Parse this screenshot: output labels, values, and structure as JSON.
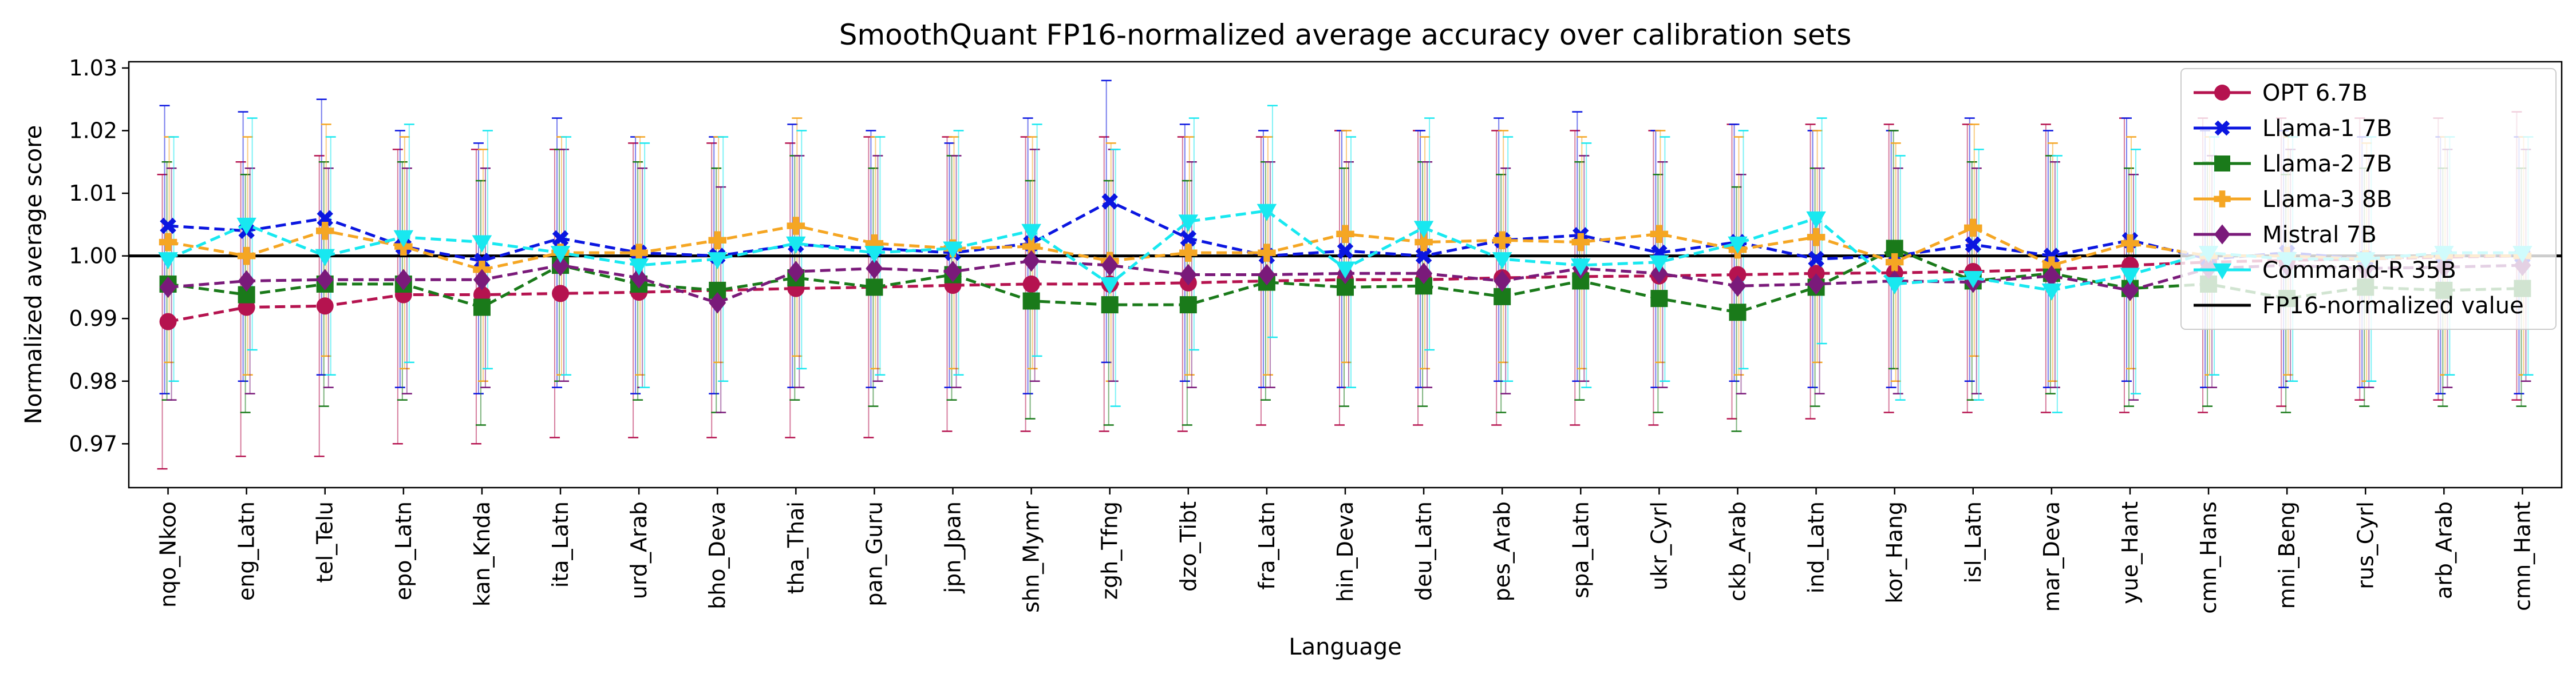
{
  "chart_data": {
    "type": "line",
    "title": "SmoothQuant FP16-normalized average accuracy over calibration sets",
    "xlabel": "Language",
    "ylabel": "Normalized average score",
    "ylim": [
      0.963,
      1.031
    ],
    "yticks": [
      0.97,
      0.98,
      0.99,
      1.0,
      1.01,
      1.02,
      1.03
    ],
    "ytick_labels": [
      "0.97",
      "0.98",
      "0.99",
      "1.00",
      "1.01",
      "1.02",
      "1.03"
    ],
    "legend_position": "top-right",
    "reference_line": {
      "label": "FP16-normalized value",
      "y": 1.0,
      "color": "#000000"
    },
    "categories": [
      "nqo_Nkoo",
      "eng_Latn",
      "tel_Telu",
      "epo_Latn",
      "kan_Knda",
      "ita_Latn",
      "urd_Arab",
      "bho_Deva",
      "tha_Thai",
      "pan_Guru",
      "jpn_Jpan",
      "shn_Mymr",
      "zgh_Tfng",
      "dzo_Tibt",
      "fra_Latn",
      "hin_Deva",
      "deu_Latn",
      "pes_Arab",
      "spa_Latn",
      "ukr_Cyrl",
      "ckb_Arab",
      "ind_Latn",
      "kor_Hang",
      "isl_Latn",
      "mar_Deva",
      "yue_Hant",
      "cmn_Hans",
      "mni_Beng",
      "rus_Cyrl",
      "arb_Arab",
      "cmn_Hant"
    ],
    "series": [
      {
        "name": "OPT 6.7B",
        "color": "#b5134f",
        "marker": "circle",
        "values": [
          0.9895,
          0.9918,
          0.992,
          0.9938,
          0.9938,
          0.994,
          0.9942,
          0.9945,
          0.9948,
          0.995,
          0.9953,
          0.9955,
          0.9955,
          0.9957,
          0.996,
          0.9962,
          0.9962,
          0.9965,
          0.9967,
          0.9968,
          0.997,
          0.9972,
          0.9973,
          0.9975,
          0.9978,
          0.9985,
          0.999,
          0.9993,
          0.9995,
          0.9998,
          1.0
        ],
        "err_low": [
          0.966,
          0.968,
          0.968,
          0.97,
          0.97,
          0.971,
          0.971,
          0.971,
          0.971,
          0.971,
          0.972,
          0.972,
          0.972,
          0.972,
          0.973,
          0.973,
          0.973,
          0.973,
          0.973,
          0.973,
          0.974,
          0.974,
          0.975,
          0.975,
          0.975,
          0.975,
          0.975,
          0.976,
          0.977,
          0.977,
          0.977
        ],
        "err_high": [
          1.013,
          1.015,
          1.016,
          1.017,
          1.017,
          1.017,
          1.018,
          1.018,
          1.018,
          1.019,
          1.019,
          1.019,
          1.019,
          1.019,
          1.019,
          1.02,
          1.02,
          1.02,
          1.02,
          1.02,
          1.021,
          1.021,
          1.021,
          1.021,
          1.021,
          1.022,
          1.022,
          1.022,
          1.022,
          1.022,
          1.023
        ]
      },
      {
        "name": "Llama-1 7B",
        "color": "#0b16e0",
        "marker": "x",
        "values": [
          1.0048,
          1.004,
          1.006,
          1.0015,
          0.9992,
          1.0028,
          1.0005,
          1.0,
          1.0018,
          1.0012,
          1.0005,
          1.002,
          1.0087,
          1.0028,
          1.0,
          1.0008,
          1.0,
          1.0025,
          1.0033,
          1.0005,
          1.0022,
          0.9995,
          1.0,
          1.0018,
          1.0,
          1.0025,
          0.9995,
          1.0005,
          0.9995,
          1.0,
          1.0
        ],
        "err_low": [
          0.978,
          0.98,
          0.981,
          0.979,
          0.978,
          0.979,
          0.978,
          0.978,
          0.979,
          0.979,
          0.979,
          0.978,
          0.983,
          0.98,
          0.979,
          0.979,
          0.979,
          0.98,
          0.98,
          0.979,
          0.98,
          0.979,
          0.979,
          0.98,
          0.979,
          0.98,
          0.979,
          0.979,
          0.979,
          0.978,
          0.978
        ],
        "err_high": [
          1.024,
          1.023,
          1.025,
          1.02,
          1.018,
          1.022,
          1.019,
          1.019,
          1.021,
          1.02,
          1.018,
          1.022,
          1.028,
          1.021,
          1.02,
          1.02,
          1.02,
          1.022,
          1.023,
          1.02,
          1.021,
          1.02,
          1.02,
          1.022,
          1.02,
          1.022,
          1.02,
          1.02,
          1.019,
          1.019,
          1.019
        ]
      },
      {
        "name": "Llama-2 7B",
        "color": "#1a7a1a",
        "marker": "square",
        "values": [
          0.9955,
          0.9938,
          0.9955,
          0.9955,
          0.9918,
          0.9985,
          0.9955,
          0.9945,
          0.9965,
          0.995,
          0.997,
          0.9928,
          0.9922,
          0.9922,
          0.9958,
          0.995,
          0.9952,
          0.9935,
          0.996,
          0.9932,
          0.991,
          0.995,
          1.0012,
          0.996,
          0.9972,
          0.9948,
          0.9955,
          0.9932,
          0.995,
          0.9945,
          0.9948
        ],
        "err_low": [
          0.977,
          0.975,
          0.976,
          0.977,
          0.973,
          0.98,
          0.977,
          0.975,
          0.977,
          0.976,
          0.977,
          0.974,
          0.973,
          0.973,
          0.977,
          0.976,
          0.976,
          0.975,
          0.977,
          0.975,
          0.972,
          0.976,
          0.982,
          0.977,
          0.978,
          0.976,
          0.976,
          0.975,
          0.976,
          0.976,
          0.976
        ],
        "err_high": [
          1.015,
          1.013,
          1.015,
          1.015,
          1.012,
          1.017,
          1.015,
          1.014,
          1.016,
          1.014,
          1.016,
          1.012,
          1.012,
          1.012,
          1.015,
          1.014,
          1.015,
          1.013,
          1.015,
          1.013,
          1.011,
          1.014,
          1.02,
          1.015,
          1.016,
          1.014,
          1.015,
          1.013,
          1.014,
          1.014,
          1.014
        ]
      },
      {
        "name": "Llama-3 8B",
        "color": "#f5a623",
        "marker": "plus",
        "values": [
          1.0022,
          1.0,
          1.004,
          1.0015,
          0.9978,
          1.0005,
          1.0005,
          1.0025,
          1.0048,
          1.002,
          1.0012,
          1.0015,
          0.9992,
          1.0005,
          1.0005,
          1.0035,
          1.0022,
          1.0025,
          1.0022,
          1.0035,
          1.001,
          1.003,
          0.999,
          1.0045,
          0.9985,
          1.002,
          1.0,
          1.0,
          0.9995,
          1.0,
          1.0
        ],
        "err_low": [
          0.983,
          0.981,
          0.984,
          0.982,
          0.98,
          0.981,
          0.981,
          0.983,
          0.984,
          0.982,
          0.982,
          0.982,
          0.98,
          0.981,
          0.981,
          0.983,
          0.982,
          0.983,
          0.982,
          0.983,
          0.981,
          0.983,
          0.98,
          0.984,
          0.98,
          0.982,
          0.981,
          0.981,
          0.98,
          0.981,
          0.981
        ],
        "err_high": [
          1.019,
          1.019,
          1.021,
          1.019,
          1.017,
          1.019,
          1.019,
          1.019,
          1.022,
          1.019,
          1.019,
          1.019,
          1.018,
          1.019,
          1.019,
          1.02,
          1.019,
          1.02,
          1.019,
          1.02,
          1.019,
          1.02,
          1.018,
          1.021,
          1.018,
          1.019,
          1.019,
          1.019,
          1.018,
          1.019,
          1.019
        ]
      },
      {
        "name": "Mistral 7B",
        "color": "#7a1a7a",
        "marker": "diamond",
        "values": [
          0.995,
          0.996,
          0.9962,
          0.9962,
          0.9962,
          0.9985,
          0.9965,
          0.9925,
          0.9975,
          0.998,
          0.9975,
          0.9992,
          0.9985,
          0.997,
          0.997,
          0.9972,
          0.9972,
          0.996,
          0.998,
          0.9972,
          0.9952,
          0.9955,
          0.996,
          0.9958,
          0.9968,
          0.9945,
          0.998,
          0.9985,
          0.998,
          0.9982,
          0.9985
        ],
        "err_low": [
          0.977,
          0.978,
          0.979,
          0.978,
          0.979,
          0.98,
          0.979,
          0.975,
          0.979,
          0.98,
          0.979,
          0.98,
          0.98,
          0.979,
          0.979,
          0.979,
          0.979,
          0.978,
          0.98,
          0.979,
          0.978,
          0.978,
          0.978,
          0.978,
          0.979,
          0.977,
          0.979,
          0.98,
          0.979,
          0.979,
          0.98
        ],
        "err_high": [
          1.014,
          1.014,
          1.014,
          1.014,
          1.014,
          1.017,
          1.014,
          1.011,
          1.016,
          1.016,
          1.016,
          1.017,
          1.017,
          1.015,
          1.015,
          1.015,
          1.015,
          1.014,
          1.016,
          1.015,
          1.013,
          1.014,
          1.014,
          1.014,
          1.015,
          1.013,
          1.016,
          1.017,
          1.016,
          1.017,
          1.017
        ]
      },
      {
        "name": "Command-R 35B",
        "color": "#18e8f0",
        "marker": "triangle-down",
        "values": [
          0.9995,
          1.005,
          1.0,
          1.003,
          1.0022,
          1.0005,
          0.9985,
          0.9995,
          1.002,
          1.0005,
          1.0012,
          1.004,
          0.9955,
          1.0055,
          1.0072,
          0.998,
          1.0045,
          0.9995,
          0.9985,
          0.999,
          1.002,
          1.006,
          0.9955,
          0.9965,
          0.9945,
          0.997,
          1.0005,
          0.9995,
          0.9995,
          1.0005,
          1.0005
        ],
        "err_low": [
          0.98,
          0.985,
          0.981,
          0.983,
          0.982,
          0.981,
          0.979,
          0.98,
          0.982,
          0.981,
          0.981,
          0.984,
          0.976,
          0.985,
          0.987,
          0.979,
          0.985,
          0.98,
          0.979,
          0.98,
          0.982,
          0.986,
          0.977,
          0.977,
          0.975,
          0.978,
          0.981,
          0.98,
          0.98,
          0.981,
          0.981
        ],
        "err_high": [
          1.019,
          1.022,
          1.019,
          1.021,
          1.02,
          1.019,
          1.018,
          1.019,
          1.02,
          1.019,
          1.02,
          1.021,
          1.017,
          1.022,
          1.024,
          1.019,
          1.022,
          1.019,
          1.018,
          1.019,
          1.02,
          1.022,
          1.016,
          1.017,
          1.016,
          1.017,
          1.019,
          1.019,
          1.019,
          1.019,
          1.019
        ]
      }
    ]
  }
}
